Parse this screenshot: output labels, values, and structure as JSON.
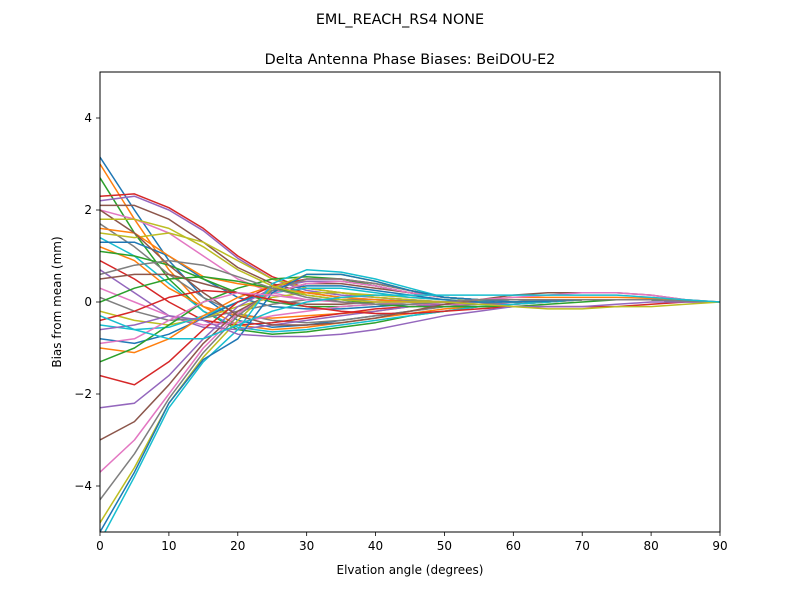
{
  "chart_data": {
    "type": "line",
    "suptitle": "EML_REACH_RS4   NONE",
    "title": "Delta Antenna Phase Biases: BeiDOU-E2",
    "xlabel": "Elvation angle (degrees)",
    "ylabel": "Bias from mean (mm)",
    "xlim": [
      0,
      90
    ],
    "ylim": [
      -5,
      5
    ],
    "xticks": [
      0,
      10,
      20,
      30,
      40,
      50,
      60,
      70,
      80,
      90
    ],
    "yticks": [
      -4,
      -2,
      0,
      2,
      4
    ],
    "ytick_labels": [
      "−4",
      "−2",
      "0",
      "2",
      "4"
    ],
    "grid": false,
    "legend": "none",
    "x": [
      0,
      5,
      10,
      15,
      20,
      25,
      30,
      35,
      40,
      45,
      50,
      55,
      60,
      65,
      70,
      75,
      80,
      85,
      90
    ],
    "colors": [
      "#1f77b4",
      "#ff7f0e",
      "#2ca02c",
      "#d62728",
      "#9467bd",
      "#8c564b",
      "#e377c2",
      "#7f7f7f",
      "#bcbd22",
      "#17becf"
    ],
    "series": [
      {
        "values": [
          3.15,
          2.0,
          0.9,
          0.1,
          -0.4,
          -0.55,
          -0.5,
          -0.4,
          -0.3,
          -0.2,
          -0.1,
          -0.05,
          0.0,
          0.05,
          0.05,
          0.05,
          0.05,
          0.02,
          0.0
        ]
      },
      {
        "values": [
          3.0,
          1.8,
          0.7,
          -0.1,
          -0.5,
          -0.6,
          -0.55,
          -0.45,
          -0.35,
          -0.25,
          -0.15,
          -0.1,
          -0.05,
          0.0,
          0.05,
          0.05,
          0.05,
          0.02,
          0.0
        ]
      },
      {
        "values": [
          2.7,
          1.5,
          0.5,
          -0.2,
          -0.6,
          -0.7,
          -0.65,
          -0.55,
          -0.45,
          -0.3,
          -0.2,
          -0.1,
          -0.05,
          0.0,
          0.05,
          0.05,
          0.05,
          0.02,
          0.0
        ]
      },
      {
        "values": [
          2.3,
          2.35,
          2.05,
          1.6,
          1.0,
          0.55,
          0.3,
          0.2,
          0.1,
          0.05,
          0.0,
          0.0,
          0.0,
          0.02,
          0.05,
          0.05,
          0.05,
          0.02,
          0.0
        ]
      },
      {
        "values": [
          2.2,
          2.3,
          2.0,
          1.55,
          0.95,
          0.5,
          0.25,
          0.15,
          0.1,
          0.05,
          0.0,
          -0.05,
          -0.05,
          0.0,
          0.05,
          0.05,
          0.05,
          0.02,
          0.0
        ]
      },
      {
        "values": [
          2.1,
          2.1,
          1.8,
          1.3,
          0.75,
          0.4,
          0.2,
          0.1,
          0.05,
          0.0,
          0.0,
          0.0,
          0.0,
          0.02,
          0.05,
          0.05,
          0.05,
          0.02,
          0.0
        ]
      },
      {
        "values": [
          2.0,
          1.8,
          1.5,
          1.0,
          0.5,
          0.2,
          0.05,
          0.0,
          -0.05,
          -0.05,
          -0.05,
          -0.05,
          0.0,
          0.02,
          0.05,
          0.05,
          0.05,
          0.02,
          0.0
        ]
      },
      {
        "values": [
          1.7,
          1.2,
          0.6,
          0.1,
          -0.25,
          -0.4,
          -0.45,
          -0.4,
          -0.3,
          -0.2,
          -0.1,
          -0.05,
          0.0,
          0.05,
          0.05,
          0.05,
          0.05,
          0.02,
          0.0
        ]
      },
      {
        "values": [
          1.5,
          1.4,
          1.5,
          1.3,
          0.9,
          0.5,
          0.3,
          0.2,
          0.1,
          0.05,
          0.0,
          0.0,
          0.0,
          0.02,
          0.05,
          0.05,
          0.05,
          0.02,
          0.0
        ]
      },
      {
        "values": [
          1.4,
          1.0,
          0.4,
          -0.2,
          -0.55,
          -0.65,
          -0.6,
          -0.5,
          -0.4,
          -0.3,
          -0.2,
          -0.1,
          -0.05,
          0.0,
          0.05,
          0.05,
          0.05,
          0.02,
          0.0
        ]
      },
      {
        "values": [
          1.3,
          1.3,
          1.0,
          0.5,
          0.1,
          -0.1,
          -0.15,
          -0.15,
          -0.1,
          -0.05,
          0.0,
          0.0,
          0.0,
          0.02,
          0.05,
          0.05,
          0.05,
          0.02,
          0.0
        ]
      },
      {
        "values": [
          1.2,
          0.9,
          0.3,
          -0.1,
          -0.3,
          -0.35,
          -0.3,
          -0.25,
          -0.2,
          -0.1,
          -0.05,
          0.0,
          0.0,
          0.02,
          0.05,
          0.05,
          0.05,
          0.02,
          0.0
        ]
      },
      {
        "values": [
          1.1,
          1.0,
          0.8,
          0.5,
          0.2,
          0.0,
          -0.1,
          -0.1,
          -0.05,
          0.0,
          0.0,
          0.0,
          0.0,
          0.02,
          0.05,
          0.05,
          0.05,
          0.02,
          0.0
        ]
      },
      {
        "values": [
          0.9,
          0.5,
          0.0,
          -0.4,
          -0.5,
          -0.45,
          -0.35,
          -0.25,
          -0.15,
          -0.1,
          -0.05,
          0.0,
          0.0,
          0.02,
          0.05,
          0.05,
          0.05,
          0.02,
          0.0
        ]
      },
      {
        "values": [
          0.7,
          0.2,
          -0.3,
          -0.55,
          -0.6,
          -0.5,
          -0.4,
          -0.3,
          -0.2,
          -0.1,
          -0.05,
          0.0,
          0.0,
          0.02,
          0.05,
          0.05,
          0.05,
          0.02,
          0.0
        ]
      },
      {
        "values": [
          0.5,
          0.6,
          0.6,
          0.4,
          0.2,
          0.05,
          -0.05,
          -0.05,
          0.0,
          0.0,
          0.0,
          0.0,
          0.0,
          0.02,
          0.05,
          0.05,
          0.05,
          0.02,
          0.0
        ]
      },
      {
        "values": [
          0.3,
          0.0,
          -0.3,
          -0.5,
          -0.45,
          -0.3,
          -0.2,
          -0.1,
          -0.05,
          0.0,
          0.0,
          0.0,
          0.0,
          0.02,
          0.05,
          0.05,
          0.05,
          0.02,
          0.0
        ]
      },
      {
        "values": [
          0.1,
          -0.2,
          -0.4,
          -0.35,
          -0.2,
          -0.05,
          0.05,
          0.05,
          0.05,
          0.02,
          0.0,
          0.0,
          0.0,
          0.02,
          0.05,
          0.05,
          0.05,
          0.02,
          0.0
        ]
      },
      {
        "values": [
          -0.2,
          -0.4,
          -0.5,
          -0.35,
          -0.1,
          0.1,
          0.2,
          0.2,
          0.15,
          0.1,
          0.05,
          0.02,
          0.0,
          0.02,
          0.05,
          0.05,
          0.05,
          0.02,
          0.0
        ]
      },
      {
        "values": [
          -0.5,
          -0.6,
          -0.55,
          -0.3,
          0.0,
          0.2,
          0.3,
          0.3,
          0.2,
          0.1,
          0.05,
          0.0,
          0.0,
          0.02,
          0.05,
          0.05,
          0.05,
          0.02,
          0.0
        ]
      },
      {
        "values": [
          -0.8,
          -0.9,
          -0.7,
          -0.35,
          0.0,
          0.25,
          0.35,
          0.35,
          0.25,
          0.15,
          0.05,
          0.0,
          0.0,
          0.02,
          0.05,
          0.05,
          0.05,
          0.02,
          0.0
        ]
      },
      {
        "values": [
          -1.0,
          -1.1,
          -0.8,
          -0.3,
          0.1,
          0.35,
          0.45,
          0.45,
          0.35,
          0.2,
          0.1,
          0.05,
          0.0,
          0.02,
          0.05,
          0.05,
          0.05,
          0.02,
          0.0
        ]
      },
      {
        "values": [
          -1.3,
          -1.0,
          -0.5,
          0.0,
          0.3,
          0.5,
          0.55,
          0.5,
          0.35,
          0.2,
          0.1,
          0.05,
          0.0,
          0.02,
          0.05,
          0.05,
          0.05,
          0.02,
          0.0
        ]
      },
      {
        "values": [
          -1.6,
          -1.8,
          -1.3,
          -0.6,
          0.0,
          0.35,
          0.5,
          0.5,
          0.4,
          0.25,
          0.1,
          0.05,
          0.0,
          0.02,
          0.05,
          0.05,
          0.05,
          0.02,
          0.0
        ]
      },
      {
        "values": [
          -2.3,
          -2.2,
          -1.6,
          -0.8,
          -0.1,
          0.3,
          0.45,
          0.45,
          0.35,
          0.2,
          0.1,
          0.05,
          0.0,
          0.02,
          0.05,
          0.05,
          0.05,
          0.02,
          0.0
        ]
      },
      {
        "values": [
          -3.0,
          -2.6,
          -1.8,
          -0.9,
          -0.2,
          0.2,
          0.4,
          0.4,
          0.3,
          0.2,
          0.1,
          0.05,
          0.0,
          0.02,
          0.05,
          0.05,
          0.05,
          0.02,
          0.0
        ]
      },
      {
        "values": [
          -3.7,
          -3.0,
          -2.0,
          -1.0,
          -0.25,
          0.2,
          0.4,
          0.45,
          0.35,
          0.2,
          0.1,
          0.05,
          0.0,
          0.02,
          0.05,
          0.05,
          0.05,
          0.02,
          0.0
        ]
      },
      {
        "values": [
          -4.3,
          -3.3,
          -2.1,
          -1.1,
          -0.3,
          0.25,
          0.5,
          0.5,
          0.4,
          0.25,
          0.1,
          0.05,
          0.0,
          0.02,
          0.05,
          0.05,
          0.05,
          0.02,
          0.0
        ]
      },
      {
        "values": [
          -4.8,
          -3.6,
          -2.2,
          -1.2,
          -0.4,
          0.3,
          0.6,
          0.6,
          0.45,
          0.25,
          0.1,
          0.05,
          0.0,
          0.02,
          0.05,
          0.05,
          0.05,
          0.02,
          0.0
        ]
      },
      {
        "values": [
          -5.2,
          -3.8,
          -2.3,
          -1.3,
          -0.6,
          0.4,
          0.7,
          0.65,
          0.5,
          0.3,
          0.1,
          0.05,
          0.0,
          0.02,
          0.05,
          0.05,
          0.05,
          0.02,
          0.0
        ]
      },
      {
        "values": [
          -5.0,
          -3.7,
          -2.2,
          -1.25,
          -0.8,
          0.2,
          0.6,
          0.6,
          0.45,
          0.25,
          0.1,
          0.05,
          0.0,
          0.02,
          0.05,
          0.05,
          0.05,
          0.02,
          0.0
        ]
      },
      {
        "values": [
          1.6,
          1.5,
          1.0,
          0.55,
          0.4,
          0.3,
          0.2,
          0.1,
          0.05,
          0.0,
          0.0,
          0.05,
          0.1,
          0.1,
          0.1,
          0.1,
          0.08,
          0.03,
          0.0
        ]
      },
      {
        "values": [
          0.0,
          0.3,
          0.5,
          0.55,
          0.45,
          0.3,
          0.15,
          0.05,
          -0.05,
          -0.1,
          -0.1,
          -0.1,
          -0.1,
          -0.05,
          0.0,
          0.05,
          0.05,
          0.02,
          0.0
        ]
      },
      {
        "values": [
          -0.4,
          -0.2,
          0.1,
          0.25,
          0.2,
          0.05,
          -0.1,
          -0.2,
          -0.25,
          -0.25,
          -0.2,
          -0.15,
          -0.1,
          -0.1,
          -0.1,
          -0.1,
          -0.05,
          0.0,
          0.0
        ]
      },
      {
        "values": [
          -0.6,
          -0.5,
          -0.3,
          -0.4,
          -0.7,
          -0.75,
          -0.75,
          -0.7,
          -0.6,
          -0.45,
          -0.3,
          -0.2,
          -0.1,
          -0.1,
          -0.1,
          -0.05,
          0.0,
          0.0,
          0.0
        ]
      },
      {
        "values": [
          2.0,
          1.5,
          0.8,
          0.2,
          -0.3,
          -0.5,
          -0.5,
          -0.45,
          -0.35,
          -0.2,
          -0.05,
          0.05,
          0.15,
          0.2,
          0.2,
          0.2,
          0.15,
          0.05,
          0.0
        ]
      },
      {
        "values": [
          -0.9,
          -0.8,
          -0.4,
          0.0,
          0.2,
          0.15,
          0.05,
          0.0,
          -0.05,
          -0.05,
          0.0,
          0.05,
          0.1,
          0.15,
          0.2,
          0.2,
          0.15,
          0.05,
          0.0
        ]
      },
      {
        "values": [
          0.6,
          0.8,
          0.9,
          0.8,
          0.55,
          0.3,
          0.1,
          0.0,
          -0.05,
          -0.05,
          0.0,
          0.05,
          0.05,
          0.05,
          0.05,
          0.05,
          0.05,
          0.02,
          0.0
        ]
      },
      {
        "values": [
          1.8,
          1.8,
          1.6,
          1.2,
          0.7,
          0.35,
          0.15,
          0.05,
          0.0,
          0.0,
          0.0,
          -0.05,
          -0.1,
          -0.15,
          -0.15,
          -0.1,
          -0.1,
          -0.05,
          0.0
        ]
      },
      {
        "values": [
          -0.3,
          -0.6,
          -0.8,
          -0.8,
          -0.5,
          -0.2,
          0.0,
          0.1,
          0.15,
          0.15,
          0.15,
          0.15,
          0.15,
          0.15,
          0.15,
          0.15,
          0.1,
          0.05,
          0.0
        ]
      }
    ]
  }
}
